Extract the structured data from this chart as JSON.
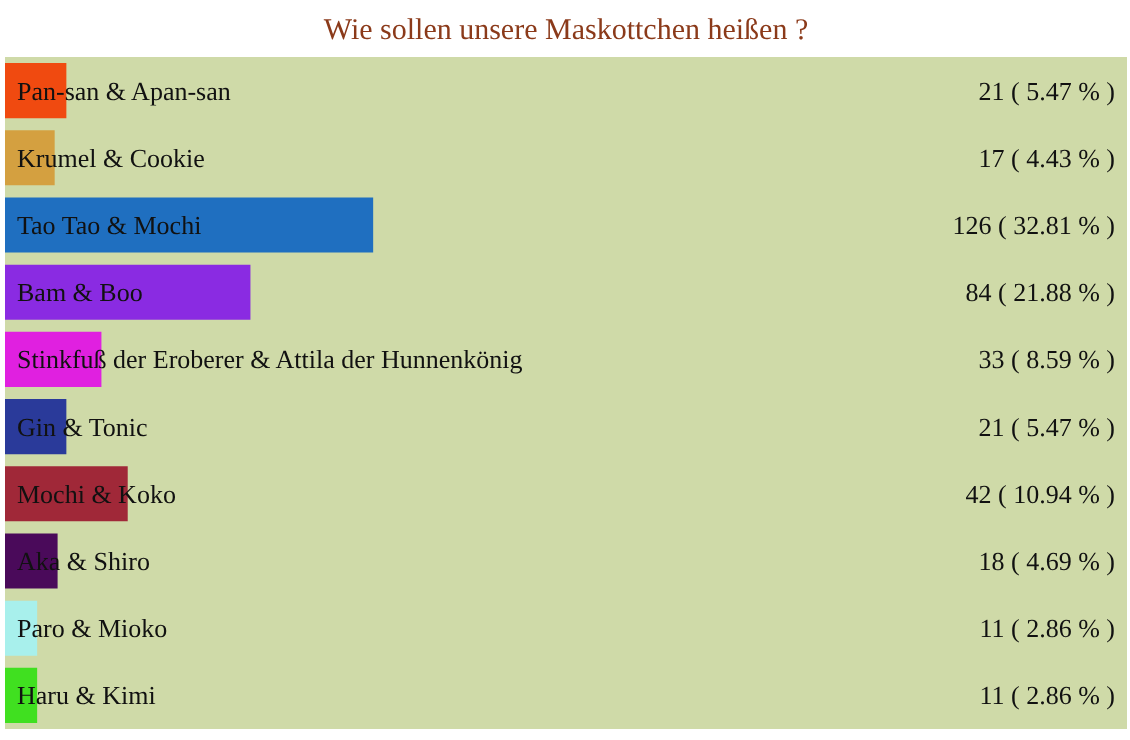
{
  "chart_data": {
    "type": "bar",
    "orientation": "horizontal",
    "title": "Wie sollen unsere Maskottchen heißen ?",
    "categories": [
      "Pan-san & Apan-san",
      "Krumel & Cookie",
      "Tao Tao & Mochi",
      "Bam & Boo",
      "Stinkfuß der Eroberer & Attila der Hunnenkönig",
      "Gin & Tonic",
      "Mochi & Koko",
      "Aka & Shiro",
      "Paro & Mioko",
      "Haru & Kimi"
    ],
    "values": [
      21,
      17,
      126,
      84,
      33,
      21,
      42,
      18,
      11,
      11
    ],
    "colors": [
      "#f04a10",
      "#d4a040",
      "#1f6fc0",
      "#8a2be2",
      "#e020e0",
      "#2a3a9a",
      "#a02838",
      "#4a0a5a",
      "#a8f0ec",
      "#40e020"
    ],
    "value_labels": [
      "21 ( 5.47 % )",
      "17 ( 4.43 % )",
      "126 ( 32.81 % )",
      "84 ( 21.88 % )",
      "33 ( 8.59 % )",
      "21 ( 5.47 % )",
      "42 ( 10.94 % )",
      "18 ( 4.69 % )",
      "11 ( 2.86 % )",
      "11 ( 2.86 % )"
    ],
    "xlim": [
      0,
      384
    ],
    "tick_labels": false,
    "grid": false
  }
}
